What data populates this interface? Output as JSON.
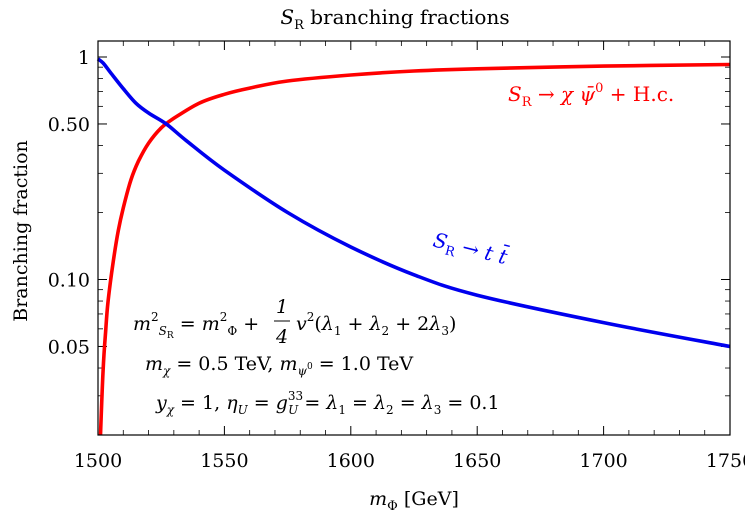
{
  "chart_data": {
    "type": "line",
    "title": "S_R branching fractions",
    "xlabel": "m_Φ [GeV]",
    "ylabel": "Branching fraction",
    "xlim": [
      1500,
      1750
    ],
    "ylim": [
      0.02,
      1.18
    ],
    "yscale": "log",
    "grid": false,
    "x_ticks": [
      1500,
      1550,
      1600,
      1650,
      1700,
      1750
    ],
    "y_ticks": [
      {
        "value": 1,
        "label": "1"
      },
      {
        "value": 0.5,
        "label": "0.50"
      },
      {
        "value": 0.1,
        "label": "0.10"
      },
      {
        "value": 0.05,
        "label": "0.05"
      }
    ],
    "series": [
      {
        "name": "S_R → χ ψ̄⁰ + H.c.",
        "color": "#ff0000",
        "x": [
          1501,
          1502,
          1503,
          1504,
          1506,
          1508,
          1510,
          1513,
          1516,
          1520,
          1525,
          1530,
          1540,
          1550,
          1560,
          1575,
          1600,
          1625,
          1650,
          1700,
          1750
        ],
        "y": [
          0.02,
          0.039,
          0.058,
          0.08,
          0.12,
          0.165,
          0.21,
          0.28,
          0.34,
          0.41,
          0.48,
          0.53,
          0.62,
          0.68,
          0.725,
          0.78,
          0.83,
          0.865,
          0.885,
          0.91,
          0.925
        ]
      },
      {
        "name": "S_R → t t̄",
        "color": "#0000ee",
        "x": [
          1500,
          1502,
          1505,
          1510,
          1515,
          1520,
          1527,
          1535,
          1550,
          1575,
          1600,
          1625,
          1650,
          1700,
          1750
        ],
        "y": [
          0.98,
          0.94,
          0.85,
          0.72,
          0.62,
          0.56,
          0.5,
          0.42,
          0.31,
          0.2,
          0.14,
          0.105,
          0.085,
          0.064,
          0.05
        ]
      }
    ],
    "annotations": {
      "formula": "m²_{S_R} = m²_Φ + ¼ v²(λ₁ + λ₂ + 2λ₃)",
      "masses": "m_χ = 0.5 TeV,  m_ψ⁰ = 1.0 TeV",
      "couplings": "y_χ = 1,  η_U = g_U^33 = λ₁ = λ₂ = λ₃ = 0.1"
    }
  }
}
